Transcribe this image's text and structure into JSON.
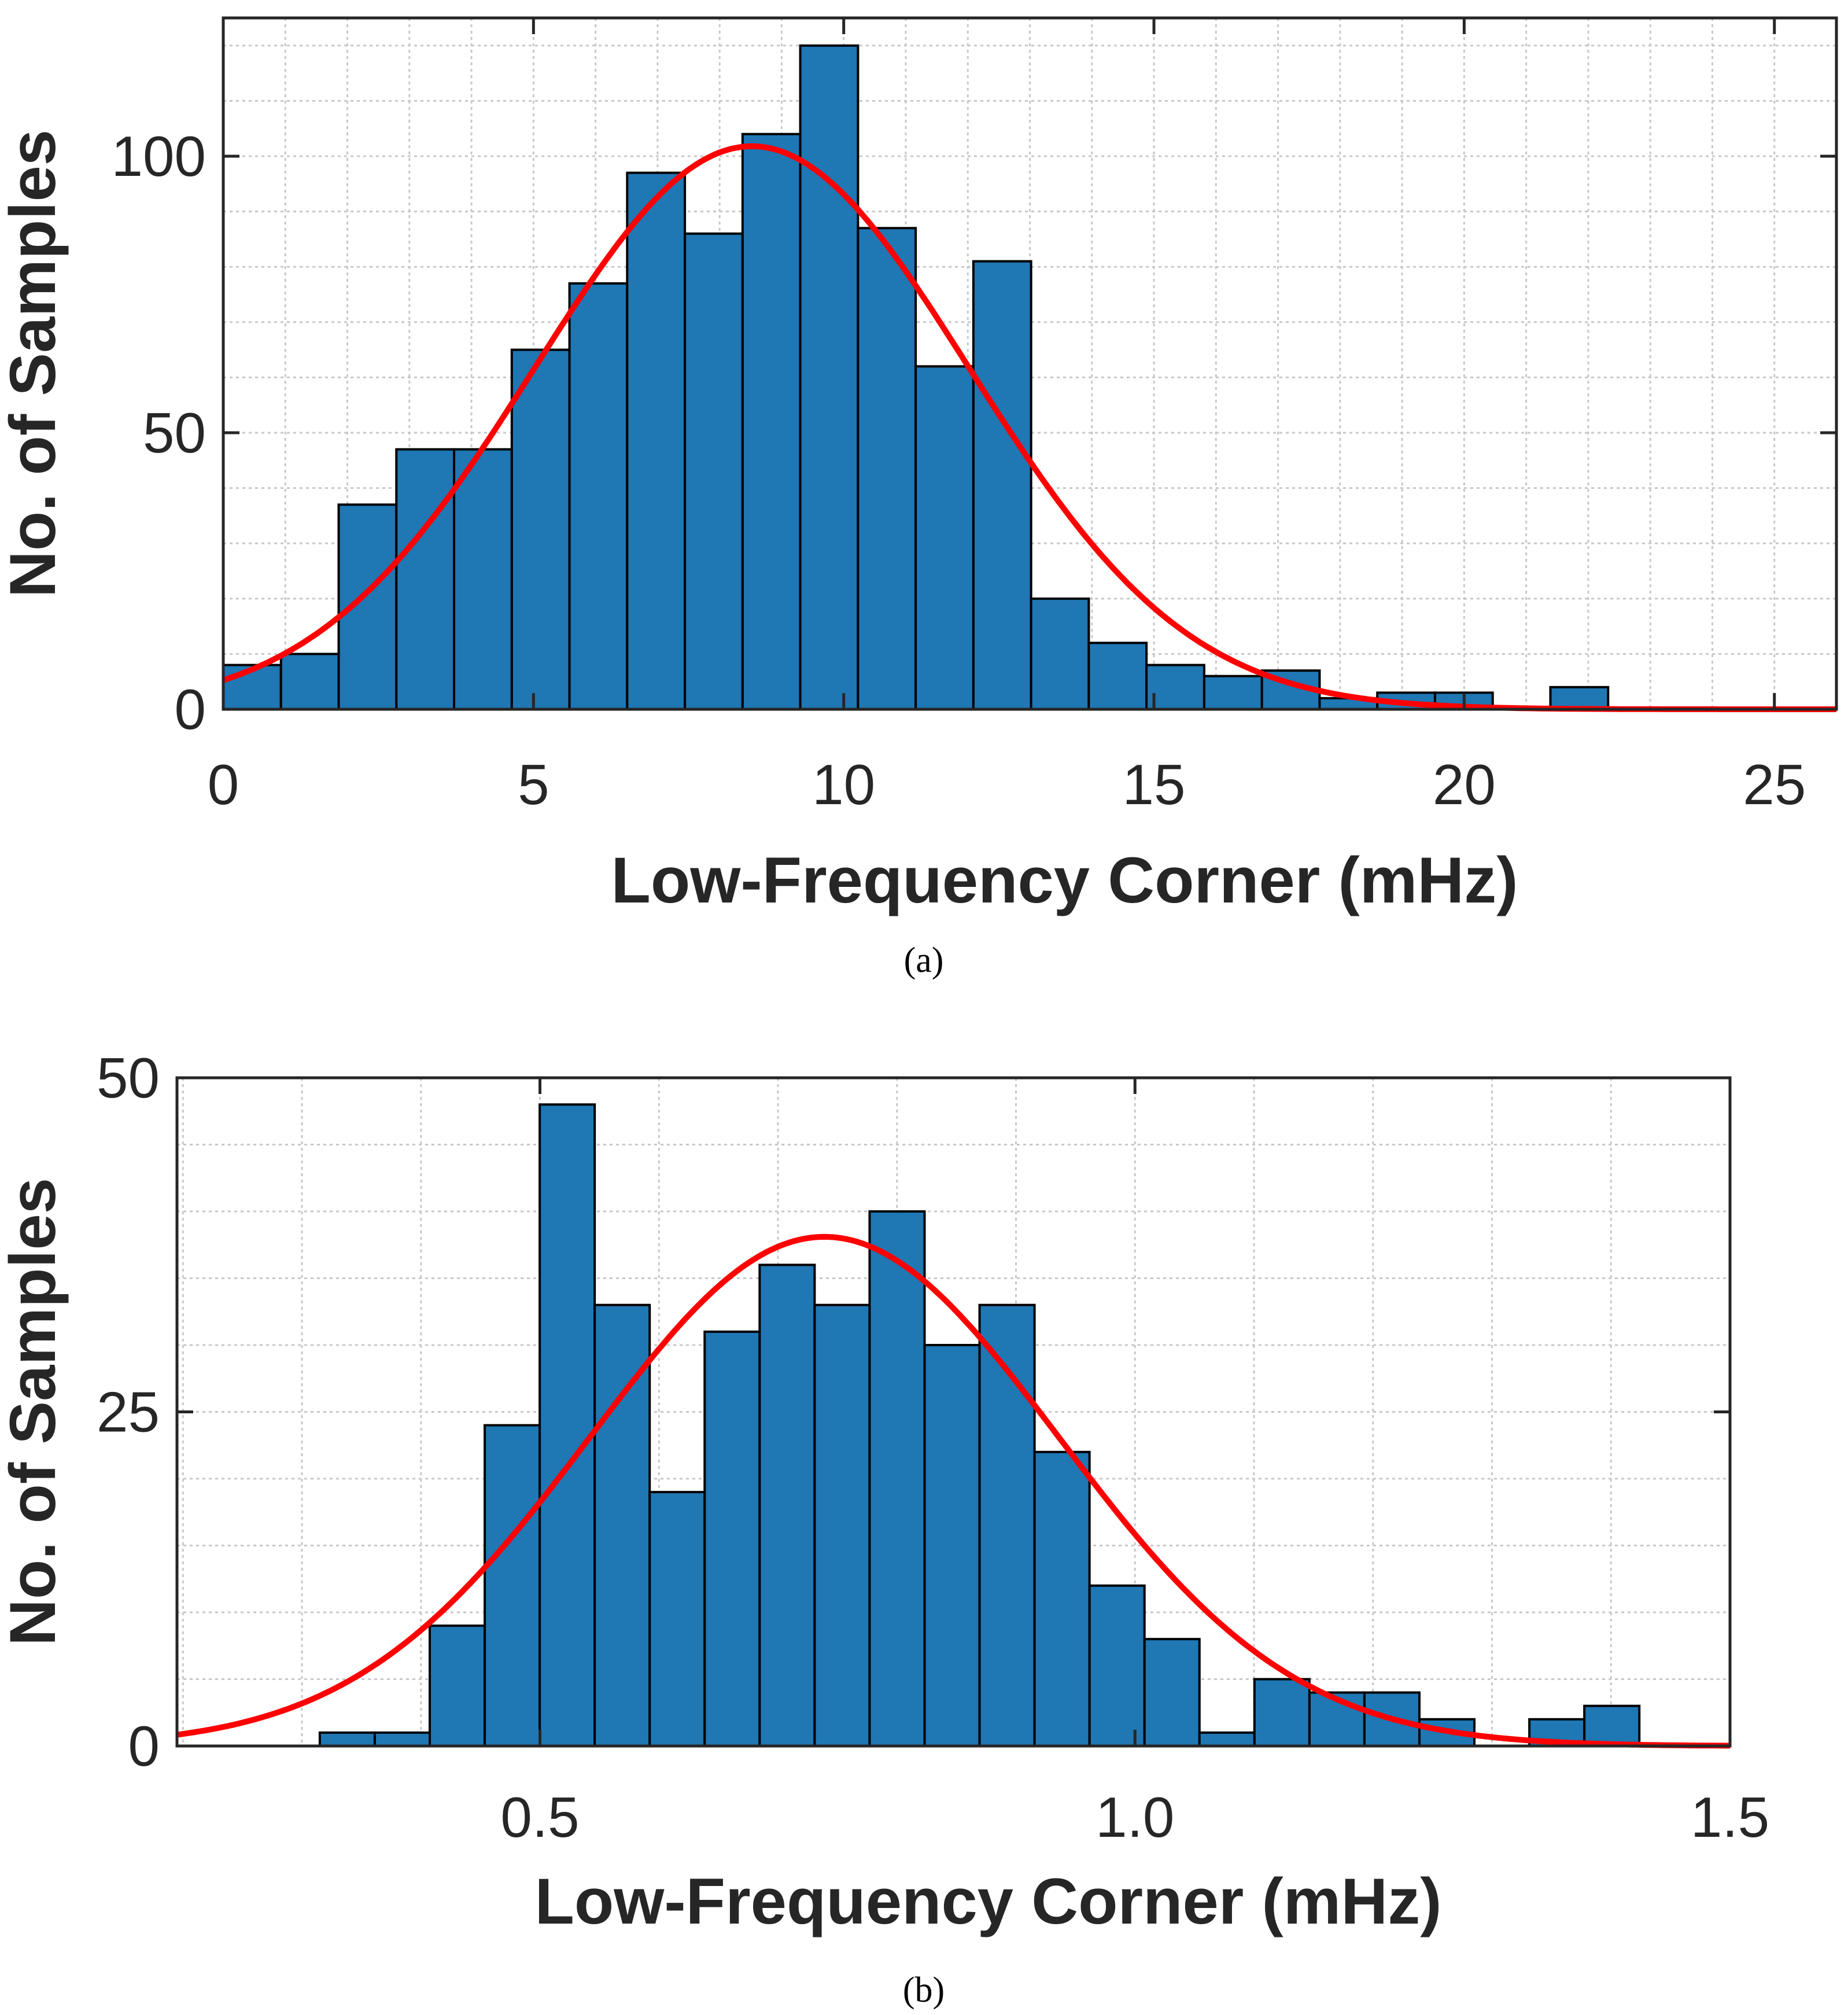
{
  "chart_data": [
    {
      "type": "bar",
      "caption": "(a)",
      "title": "",
      "xlabel": "Low-Frequency Corner (mHz)",
      "ylabel": "No. of Samples",
      "xlim": [
        0,
        26
      ],
      "ylim": [
        0,
        125
      ],
      "xticks": [
        0,
        5,
        10,
        15,
        20,
        25
      ],
      "xtick_labels": [
        "0",
        "5",
        "10",
        "15",
        "20",
        "25"
      ],
      "yticks": [
        0,
        50,
        100
      ],
      "ytick_labels": [
        "0",
        "50",
        "100"
      ],
      "x_minor_grid_step": 1,
      "y_minor_grid_step": 10,
      "grid": true,
      "bin_start": 0,
      "bin_width": 0.93,
      "values": [
        8,
        10,
        37,
        47,
        47,
        65,
        77,
        97,
        86,
        104,
        120,
        87,
        62,
        81,
        20,
        12,
        8,
        6,
        7,
        2,
        3,
        3,
        0,
        4
      ],
      "bar_color": "#1f77b4",
      "fit": {
        "type": "normal",
        "mean": 8.52,
        "sigma": 3.5,
        "peak": 101.8,
        "color": "#ff0000"
      }
    },
    {
      "type": "bar",
      "caption": "(b)",
      "title": "",
      "xlabel": "Low-Frequency Corner (mHz)",
      "ylabel": "No. of Samples",
      "xlim": [
        0.195,
        1.5
      ],
      "ylim": [
        0,
        50
      ],
      "xticks": [
        0.5,
        1.0,
        1.5
      ],
      "xtick_labels": [
        "0.5",
        "1.0",
        "1.5"
      ],
      "yticks": [
        0,
        25,
        50
      ],
      "ytick_labels": [
        "0",
        "25",
        "50"
      ],
      "x_minor_grid_step": 0.1,
      "y_minor_grid_step": 5,
      "grid": true,
      "bin_start": 0.315,
      "bin_width": 0.0462,
      "values": [
        1,
        1,
        9,
        24,
        48,
        33,
        19,
        31,
        36,
        33,
        40,
        30,
        33,
        22,
        12,
        8,
        1,
        5,
        4,
        4,
        2,
        0,
        2,
        3
      ],
      "bar_color": "#1f77b4",
      "fit": {
        "type": "normal",
        "mean": 0.739,
        "sigma": 0.197,
        "peak": 38.1,
        "color": "#ff0000"
      }
    }
  ]
}
